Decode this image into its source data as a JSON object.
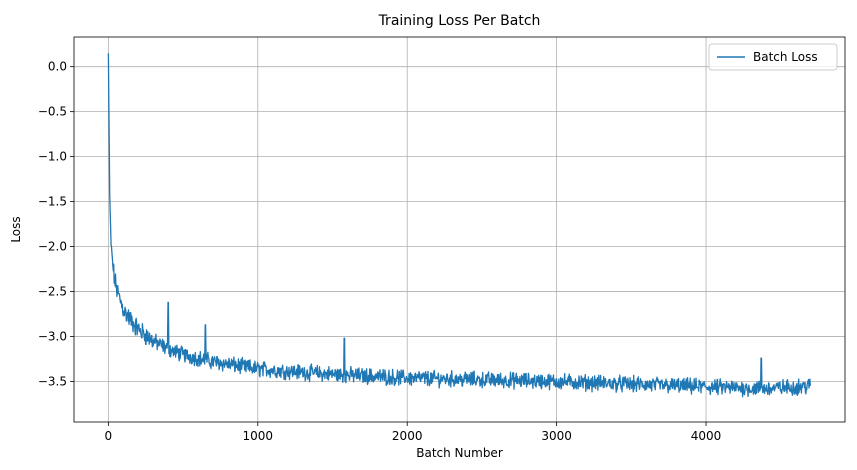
{
  "chart_data": {
    "type": "line",
    "title": "Training Loss Per Batch",
    "xlabel": "Batch Number",
    "ylabel": "Loss",
    "xlim": [
      -230,
      4930
    ],
    "ylim": [
      -3.95,
      0.33
    ],
    "xticks": [
      0,
      1000,
      2000,
      3000,
      4000
    ],
    "yticks": [
      0.0,
      -0.5,
      -1.0,
      -1.5,
      -2.0,
      -2.5,
      -3.0,
      -3.5
    ],
    "xtick_labels": [
      "0",
      "1000",
      "2000",
      "3000",
      "4000"
    ],
    "ytick_labels": [
      "0.0",
      "−0.5",
      "−1.0",
      "−1.5",
      "−2.0",
      "−2.5",
      "−3.0",
      "−3.5"
    ],
    "grid": true,
    "legend_position": "top-right",
    "series": [
      {
        "name": "Batch Loss",
        "color": "#1f77b4",
        "x_range": [
          0,
          4700
        ],
        "trend": {
          "x": [
            0,
            10,
            20,
            40,
            60,
            100,
            150,
            200,
            300,
            400,
            500,
            700,
            1000,
            1500,
            2000,
            3000,
            4000,
            4400,
            4700
          ],
          "y": [
            0.15,
            -1.6,
            -2.05,
            -2.35,
            -2.5,
            -2.7,
            -2.82,
            -2.92,
            -3.05,
            -3.14,
            -3.2,
            -3.28,
            -3.36,
            -3.42,
            -3.46,
            -3.5,
            -3.56,
            -3.58,
            -3.55
          ]
        },
        "noise_amplitude": 0.07,
        "spikes": [
          {
            "x": 400,
            "y": -2.62
          },
          {
            "x": 650,
            "y": -2.87
          },
          {
            "x": 1580,
            "y": -3.02
          },
          {
            "x": 4370,
            "y": -3.24
          }
        ]
      }
    ]
  }
}
